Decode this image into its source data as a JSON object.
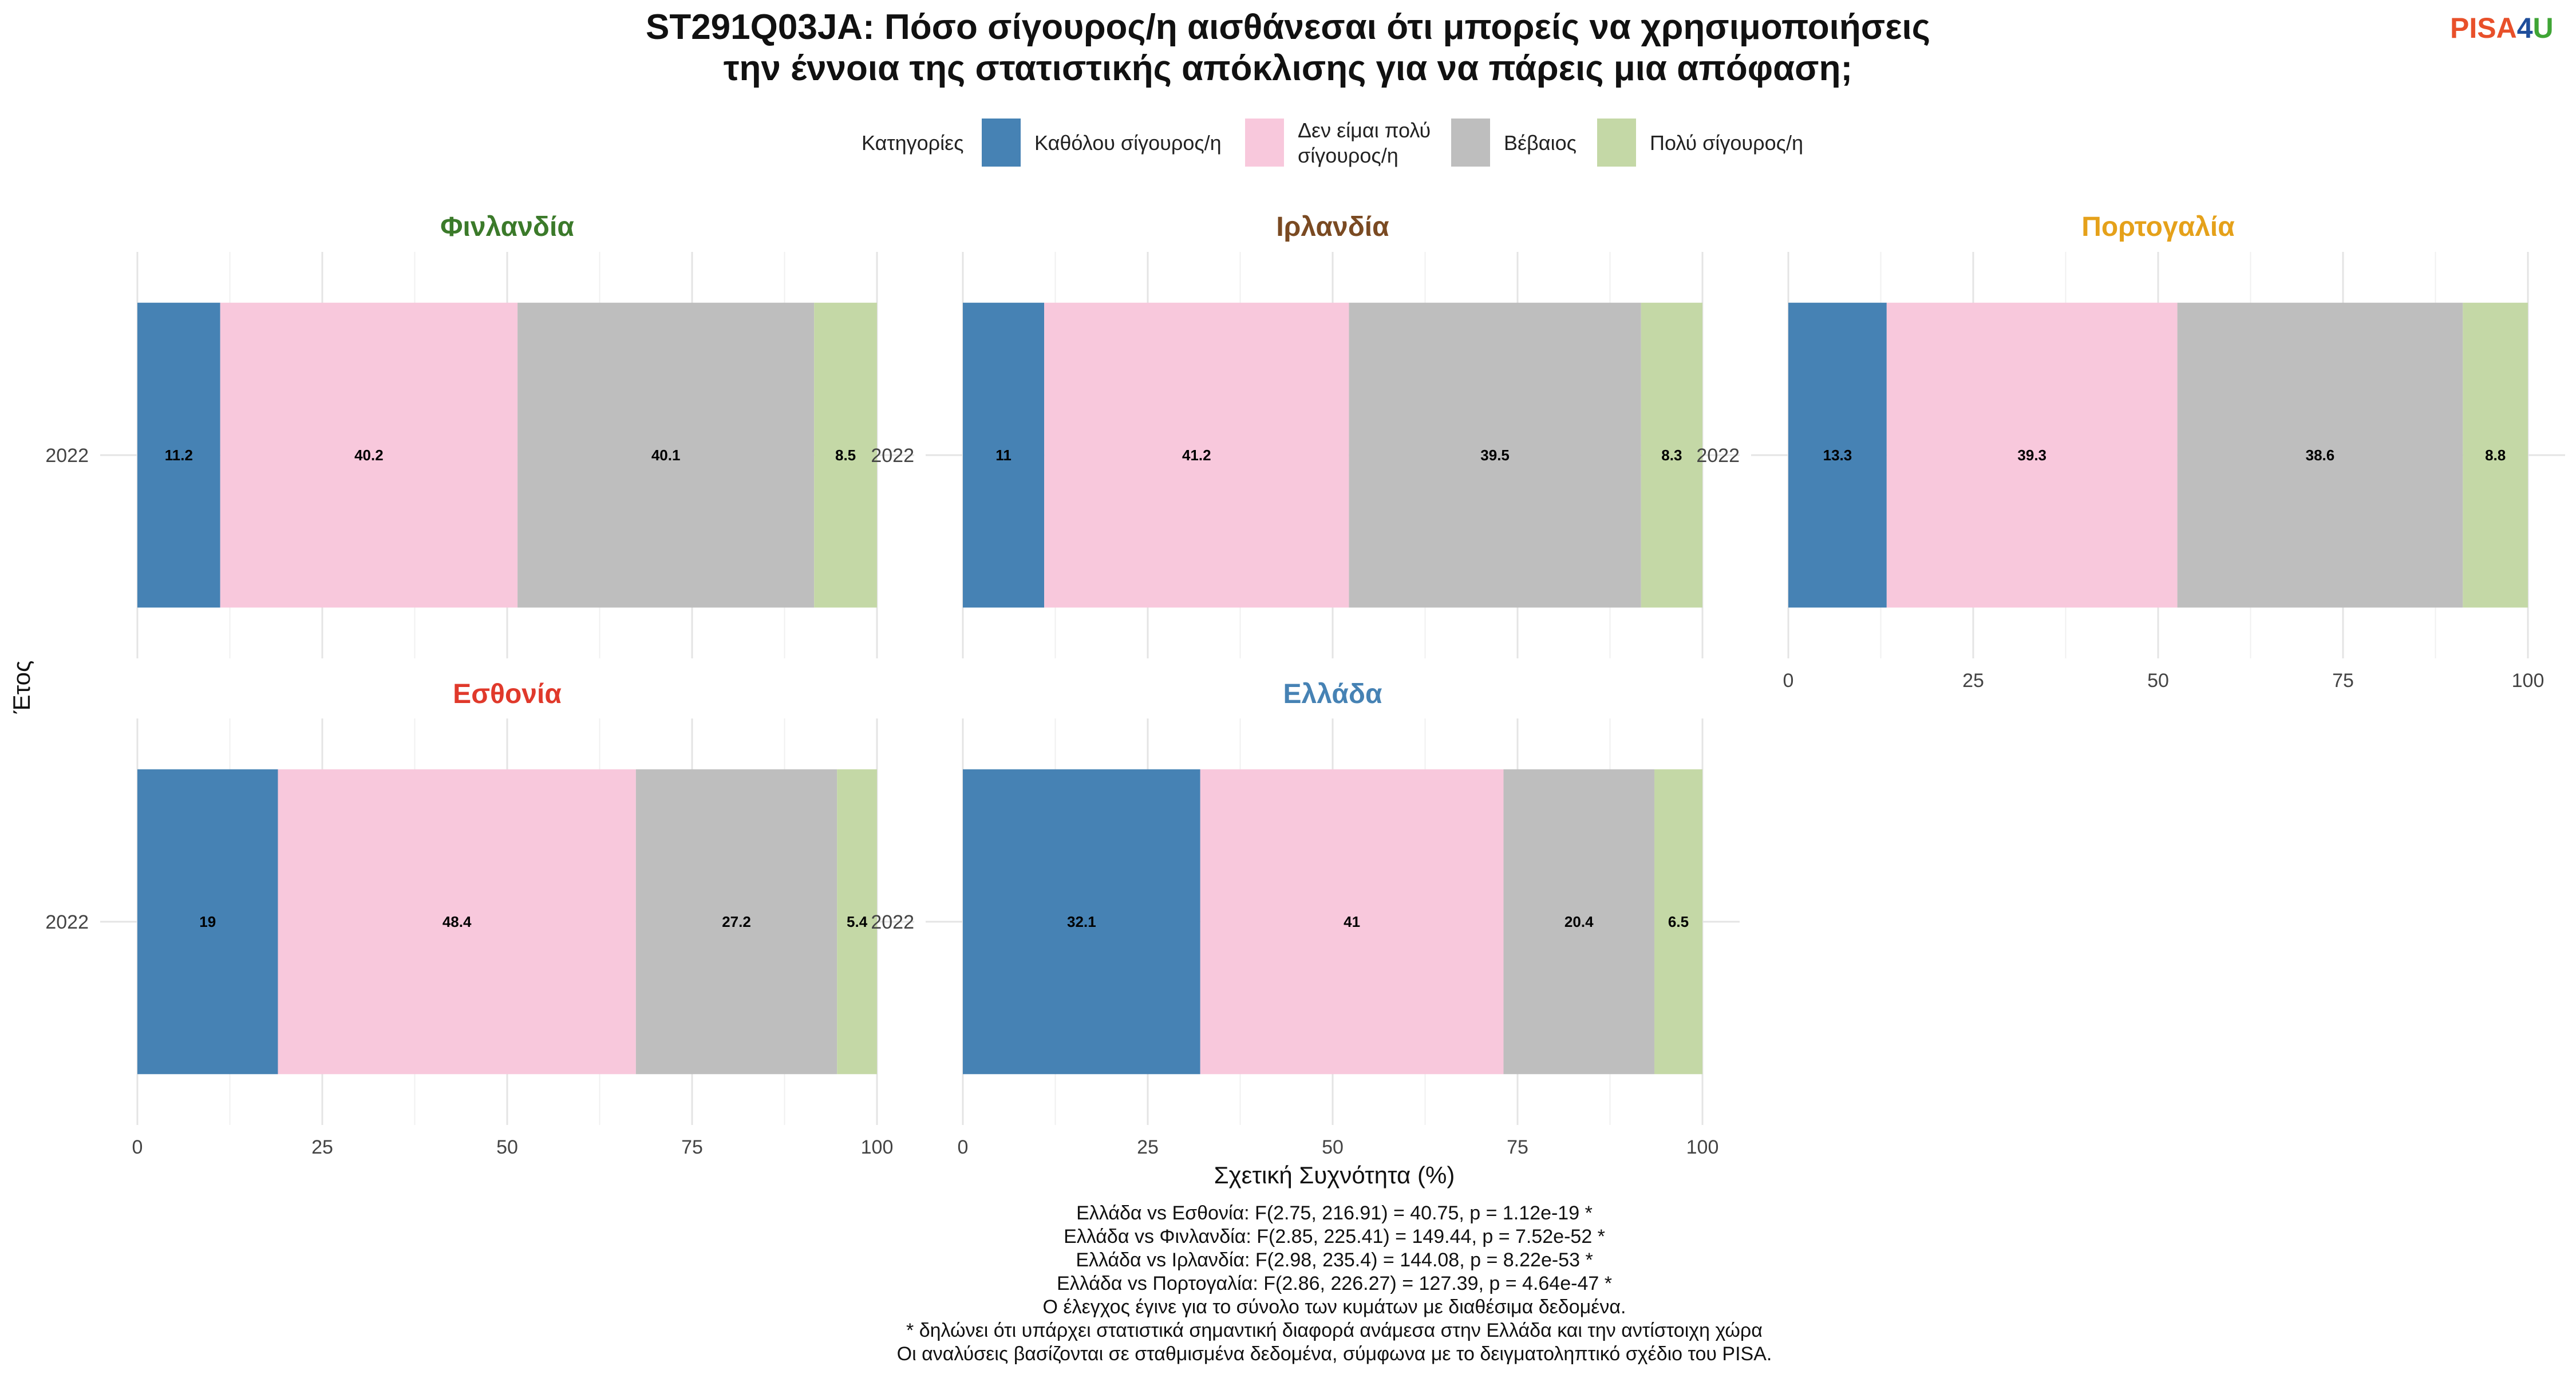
{
  "chart_data": {
    "type": "bar",
    "orientation": "horizontal",
    "stacked": true,
    "title_lines": [
      "ST291Q03JA: Πόσο σίγουρος/η αισθάνεσαι ότι μπορείς να χρησιμοποιήσεις",
      "την έννοια της στατιστικής απόκλισης για να πάρεις μια απόφαση;"
    ],
    "legend": {
      "title": "Κατηγορίες",
      "position": "top",
      "items": [
        {
          "label_lines": [
            "Καθόλου σίγουρος/η"
          ],
          "color": "#4682B4"
        },
        {
          "label_lines": [
            "Δεν είμαι πολύ",
            "σίγουρος/η"
          ],
          "color": "#F8C8DC"
        },
        {
          "label_lines": [
            "Βέβαιος"
          ],
          "color": "#BEBEBE"
        },
        {
          "label_lines": [
            "Πολύ σίγουρος/η"
          ],
          "color": "#C4D8A6"
        }
      ]
    },
    "xlabel": "Σχετική Συχνότητα (%)",
    "ylabel": "Έτος",
    "xlim": [
      0,
      100
    ],
    "xticks": [
      "0",
      "25",
      "50",
      "75",
      "100"
    ],
    "grid": true,
    "facets": [
      {
        "country": "Φινλανδία",
        "color": "#3B7A2A",
        "year": "2022",
        "values": [
          11.2,
          40.2,
          40.1,
          8.5
        ]
      },
      {
        "country": "Ιρλανδία",
        "color": "#7A4A22",
        "year": "2022",
        "values": [
          11,
          41.2,
          39.5,
          8.3
        ]
      },
      {
        "country": "Πορτογαλία",
        "color": "#E5A11A",
        "year": "2022",
        "values": [
          13.3,
          39.3,
          38.6,
          8.8
        ]
      },
      {
        "country": "Εσθονία",
        "color": "#E0392B",
        "year": "2022",
        "values": [
          19,
          48.4,
          27.2,
          5.4
        ]
      },
      {
        "country": "Ελλάδα",
        "color": "#4682B4",
        "year": "2022",
        "values": [
          32.1,
          41,
          20.4,
          6.5
        ]
      }
    ],
    "notes": [
      "Ελλάδα vs Εσθονία: F(2.75, 216.91) = 40.75, p = 1.12e-19 *",
      "Ελλάδα vs Φινλανδία: F(2.85, 225.41) = 149.44, p = 7.52e-52 *",
      "Ελλάδα vs Ιρλανδία: F(2.98, 235.4) = 144.08, p = 8.22e-53 *",
      "Ελλάδα vs Πορτογαλία: F(2.86, 226.27) = 127.39, p = 4.64e-47 *",
      "Ο έλεγχος έγινε για το σύνολο των κυμάτων με διαθέσιμα δεδομένα.",
      "* δηλώνει ότι υπάρχει στατιστικά σημαντική διαφορά ανάμεσα στην Ελλάδα και την αντίστοιχη χώρα",
      "Οι αναλύσεις βασίζονται σε σταθμισμένα δεδομένα, σύμφωνα με το δειγματοληπτικό σχέδιο του PISA."
    ]
  },
  "logo": {
    "parts": [
      {
        "text": "PISA",
        "color": "#E8502A"
      },
      {
        "text": "4",
        "color": "#1F4E9B"
      },
      {
        "text": "U",
        "color": "#3FA535"
      }
    ]
  }
}
